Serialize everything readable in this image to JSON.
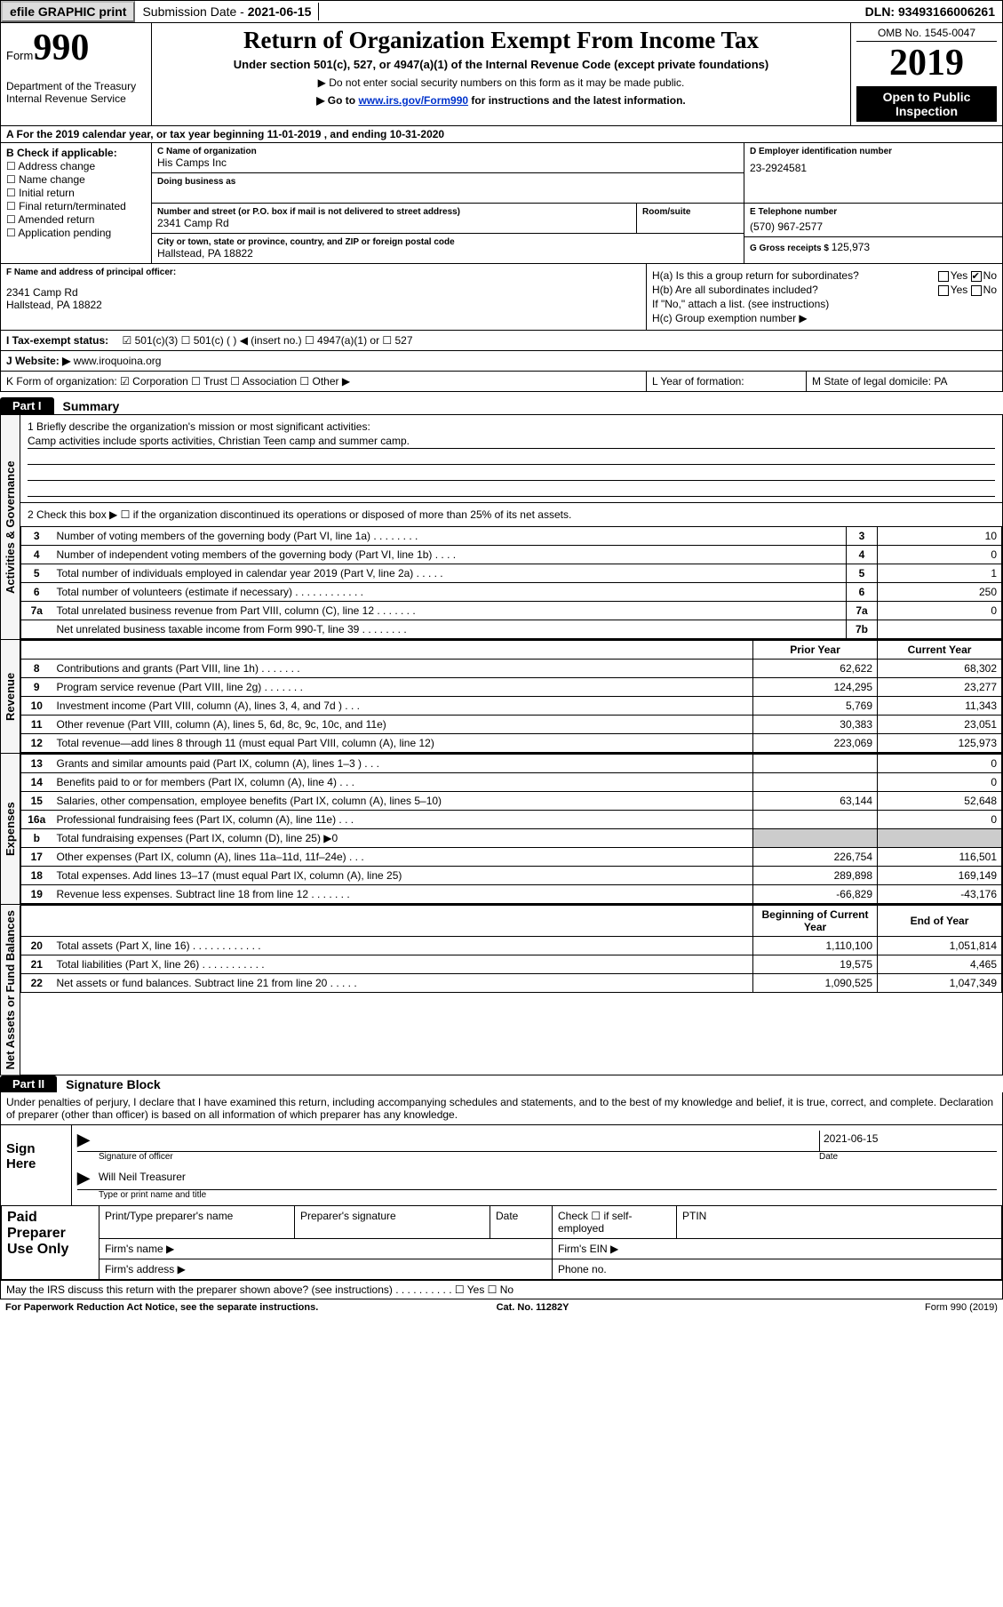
{
  "topbar": {
    "efile": "efile GRAPHIC print",
    "submission_label": "Submission Date - ",
    "submission_date": "2021-06-15",
    "dln_label": "DLN: ",
    "dln": "93493166006261"
  },
  "header": {
    "form_label": "Form",
    "form_number": "990",
    "department": "Department of the Treasury\nInternal Revenue Service",
    "title": "Return of Organization Exempt From Income Tax",
    "sub1": "Under section 501(c), 527, or 4947(a)(1) of the Internal Revenue Code (except private foundations)",
    "sub2": "▶ Do not enter social security numbers on this form as it may be made public.",
    "sub3_pre": "▶ Go to ",
    "sub3_link": "www.irs.gov/Form990",
    "sub3_post": " for instructions and the latest information.",
    "omb": "OMB No. 1545-0047",
    "year": "2019",
    "inspection": "Open to Public Inspection"
  },
  "row_a": "A  For the 2019 calendar year, or tax year beginning 11-01-2019    , and ending 10-31-2020",
  "box_b": {
    "label": "B Check if applicable:",
    "items": [
      "☐ Address change",
      "☐ Name change",
      "☐ Initial return",
      "☐ Final return/terminated",
      "☐ Amended return",
      "☐ Application pending"
    ]
  },
  "box_c": {
    "name_label": "C Name of organization",
    "name": "His Camps Inc",
    "dba_label": "Doing business as",
    "street_label": "Number and street (or P.O. box if mail is not delivered to street address)",
    "room_label": "Room/suite",
    "street": "2341 Camp Rd",
    "city_label": "City or town, state or province, country, and ZIP or foreign postal code",
    "city": "Hallstead, PA  18822"
  },
  "box_d": {
    "label": "D Employer identification number",
    "ein": "23-2924581",
    "phone_label": "E Telephone number",
    "phone": "(570) 967-2577",
    "gross_label": "G Gross receipts $ ",
    "gross": "125,973"
  },
  "box_f": {
    "label": "F Name and address of principal officer:",
    "addr1": "2341 Camp Rd",
    "addr2": "Hallstead, PA  18822"
  },
  "box_h": {
    "ha": "H(a)  Is this a group return for subordinates?",
    "hb": "H(b)  Are all subordinates included?",
    "hb_note": "If \"No,\" attach a list. (see instructions)",
    "hc": "H(c)  Group exemption number ▶",
    "yes": "Yes",
    "no": "No"
  },
  "row_i": {
    "label": "I    Tax-exempt status:",
    "opts": "☑ 501(c)(3)    ☐ 501(c) (  ) ◀ (insert no.)    ☐ 4947(a)(1) or   ☐ 527"
  },
  "row_j": {
    "label": "J   Website: ▶ ",
    "val": "www.iroquoina.org"
  },
  "row_k": "K Form of organization:   ☑ Corporation  ☐ Trust  ☐ Association  ☐ Other ▶",
  "row_l": "L Year of formation:",
  "row_m": "M State of legal domicile: PA",
  "part1": {
    "tab": "Part I",
    "title": "Summary",
    "q1_label": "1   Briefly describe the organization's mission or most significant activities:",
    "q1_val": "Camp activities include sports activities, Christian Teen camp and summer camp.",
    "q2": "2    Check this box ▶ ☐  if the organization discontinued its operations or disposed of more than 25% of its net assets.",
    "rows_gov": [
      {
        "n": "3",
        "d": "Number of voting members of the governing body (Part VI, line 1a)   .   .   .   .   .   .   .   .",
        "b": "3",
        "v": "10"
      },
      {
        "n": "4",
        "d": "Number of independent voting members of the governing body (Part VI, line 1b)   .   .   .   .",
        "b": "4",
        "v": "0"
      },
      {
        "n": "5",
        "d": "Total number of individuals employed in calendar year 2019 (Part V, line 2a)  .   .   .   .   .",
        "b": "5",
        "v": "1"
      },
      {
        "n": "6",
        "d": "Total number of volunteers (estimate if necessary)   .   .   .   .   .   .   .   .   .   .   .   .",
        "b": "6",
        "v": "250"
      },
      {
        "n": "7a",
        "d": "Total unrelated business revenue from Part VIII, column (C), line 12   .   .   .   .   .   .   .",
        "b": "7a",
        "v": "0"
      },
      {
        "n": "",
        "d": "Net unrelated business taxable income from Form 990-T, line 39   .   .   .   .   .   .   .   .",
        "b": "7b",
        "v": ""
      }
    ],
    "col_prior": "Prior Year",
    "col_current": "Current Year",
    "rows_rev": [
      {
        "n": "8",
        "d": "Contributions and grants (Part VIII, line 1h)   .   .   .   .   .   .   .",
        "p": "62,622",
        "c": "68,302"
      },
      {
        "n": "9",
        "d": "Program service revenue (Part VIII, line 2g)   .   .   .   .   .   .   .",
        "p": "124,295",
        "c": "23,277"
      },
      {
        "n": "10",
        "d": "Investment income (Part VIII, column (A), lines 3, 4, and 7d )   .   .   .",
        "p": "5,769",
        "c": "11,343"
      },
      {
        "n": "11",
        "d": "Other revenue (Part VIII, column (A), lines 5, 6d, 8c, 9c, 10c, and 11e)",
        "p": "30,383",
        "c": "23,051"
      },
      {
        "n": "12",
        "d": "Total revenue—add lines 8 through 11 (must equal Part VIII, column (A), line 12)",
        "p": "223,069",
        "c": "125,973"
      }
    ],
    "rows_exp": [
      {
        "n": "13",
        "d": "Grants and similar amounts paid (Part IX, column (A), lines 1–3 )   .   .   .",
        "p": "",
        "c": "0"
      },
      {
        "n": "14",
        "d": "Benefits paid to or for members (Part IX, column (A), line 4)   .   .   .",
        "p": "",
        "c": "0"
      },
      {
        "n": "15",
        "d": "Salaries, other compensation, employee benefits (Part IX, column (A), lines 5–10)",
        "p": "63,144",
        "c": "52,648"
      },
      {
        "n": "16a",
        "d": "Professional fundraising fees (Part IX, column (A), line 11e)   .   .   .",
        "p": "",
        "c": "0"
      },
      {
        "n": "b",
        "d": "Total fundraising expenses (Part IX, column (D), line 25) ▶0",
        "p": "SHADE",
        "c": "SHADE"
      },
      {
        "n": "17",
        "d": "Other expenses (Part IX, column (A), lines 11a–11d, 11f–24e)   .   .   .",
        "p": "226,754",
        "c": "116,501"
      },
      {
        "n": "18",
        "d": "Total expenses. Add lines 13–17 (must equal Part IX, column (A), line 25)",
        "p": "289,898",
        "c": "169,149"
      },
      {
        "n": "19",
        "d": "Revenue less expenses. Subtract line 18 from line 12  .   .   .   .   .   .   .",
        "p": "-66,829",
        "c": "-43,176"
      }
    ],
    "col_begin": "Beginning of Current Year",
    "col_end": "End of Year",
    "rows_net": [
      {
        "n": "20",
        "d": "Total assets (Part X, line 16)   .   .   .   .   .   .   .   .   .   .   .   .",
        "p": "1,110,100",
        "c": "1,051,814"
      },
      {
        "n": "21",
        "d": "Total liabilities (Part X, line 26)   .   .   .   .   .   .   .   .   .   .   .",
        "p": "19,575",
        "c": "4,465"
      },
      {
        "n": "22",
        "d": "Net assets or fund balances. Subtract line 21 from line 20  .   .   .   .   .",
        "p": "1,090,525",
        "c": "1,047,349"
      }
    ],
    "vlab_gov": "Activities & Governance",
    "vlab_rev": "Revenue",
    "vlab_exp": "Expenses",
    "vlab_net": "Net Assets or Fund Balances"
  },
  "part2": {
    "tab": "Part II",
    "title": "Signature Block",
    "intro": "Under penalties of perjury, I declare that I have examined this return, including accompanying schedules and statements, and to the best of my knowledge and belief, it is true, correct, and complete. Declaration of preparer (other than officer) is based on all information of which preparer has any knowledge.",
    "sign_here": "Sign Here",
    "sig_officer": "Signature of officer",
    "sig_date": "Date",
    "date_val": "2021-06-15",
    "name_title": "Will Neil  Treasurer",
    "name_cap": "Type or print name and title",
    "paid_prep": "Paid Preparer Use Only",
    "pt_name": "Print/Type preparer's name",
    "pt_sig": "Preparer's signature",
    "pt_date": "Date",
    "pt_check": "Check ☐ if self-employed",
    "pt_ptin": "PTIN",
    "firm_name": "Firm's name    ▶",
    "firm_ein": "Firm's EIN ▶",
    "firm_addr": "Firm's address ▶",
    "firm_phone": "Phone no.",
    "discuss": "May the IRS discuss this return with the preparer shown above? (see instructions)   .   .   .   .   .   .   .   .   .   .   ☐ Yes   ☐ No"
  },
  "footer": {
    "left": "For Paperwork Reduction Act Notice, see the separate instructions.",
    "mid": "Cat. No. 11282Y",
    "right": "Form 990 (2019)"
  }
}
